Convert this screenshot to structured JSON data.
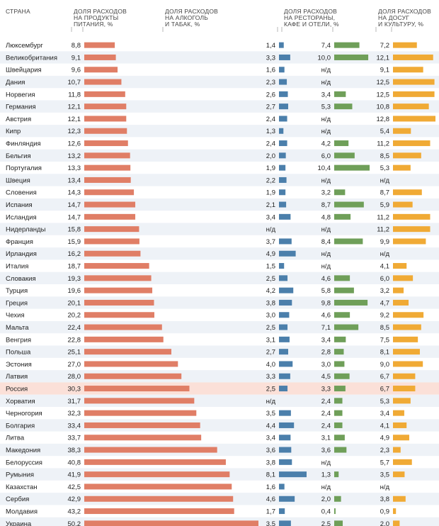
{
  "headers": {
    "country": "СТРАНА",
    "food": [
      "ДОЛЯ РАСХОДОВ",
      "НА ПРОДУКТЫ",
      "ПИТАНИЯ, %"
    ],
    "alcohol": [
      "ДОЛЯ РАСХОДОВ",
      "НА АЛКОГОЛЬ",
      "И ТАБАК, %"
    ],
    "restaurants": [
      "ДОЛЯ РАСХОДОВ",
      "НА РЕСТОРАНЫ,",
      "КАФЕ И ОТЕЛИ, %"
    ],
    "culture": [
      "ДОЛЯ РАСХОДОВ",
      "НА ДОСУГ",
      "И КУЛЬТУРУ, %"
    ]
  },
  "colors": {
    "food": "#e07e66",
    "alcohol": "#4b7fab",
    "restaurants": "#6f9f59",
    "culture": "#f0aa35",
    "stripe": "#eef2f7",
    "highlight": "#fbe0d8"
  },
  "chart_data": {
    "type": "bar",
    "title": "",
    "highlight": "Россия",
    "missing_label": "н/д",
    "categories": [
      "Люксембург",
      "Великобритания",
      "Швейцария",
      "Дания",
      "Норвегия",
      "Германия",
      "Австрия",
      "Кипр",
      "Финляндия",
      "Бельгия",
      "Португалия",
      "Швеция",
      "Словения",
      "Испания",
      "Исландия",
      "Нидерланды",
      "Франция",
      "Ирландия",
      "Италия",
      "Словакия",
      "Турция",
      "Греция",
      "Чехия",
      "Мальта",
      "Венгрия",
      "Польша",
      "Эстония",
      "Латвия",
      "Россия",
      "Хорватия",
      "Черногория",
      "Болгария",
      "Литва",
      "Македония",
      "Белоруссия",
      "Румыния",
      "Казахстан",
      "Сербия",
      "Молдавия",
      "Украина"
    ],
    "series": [
      {
        "name": "Доля расходов на продукты питания, %",
        "key": "food",
        "max": 50.2,
        "values": [
          8.8,
          9.1,
          9.6,
          10.7,
          11.8,
          12.1,
          12.1,
          12.3,
          12.6,
          13.2,
          13.3,
          13.4,
          14.3,
          14.7,
          14.7,
          15.8,
          15.9,
          16.2,
          18.7,
          19.3,
          19.6,
          20.1,
          20.2,
          22.4,
          22.8,
          25.1,
          27.0,
          28.0,
          30.3,
          31.7,
          32.3,
          33.4,
          33.7,
          38.3,
          40.8,
          41.9,
          42.5,
          42.9,
          43.2,
          50.2
        ]
      },
      {
        "name": "Доля расходов на алкоголь и табак, %",
        "key": "alcohol",
        "max": 8.1,
        "values": [
          1.4,
          3.3,
          1.6,
          2.3,
          2.6,
          2.7,
          2.4,
          1.3,
          2.4,
          2.0,
          1.9,
          2.2,
          1.9,
          2.1,
          3.4,
          null,
          3.7,
          4.9,
          1.5,
          2.5,
          4.2,
          3.8,
          3.0,
          2.5,
          3.1,
          2.7,
          4.0,
          3.3,
          2.5,
          null,
          3.5,
          4.4,
          3.4,
          3.6,
          3.8,
          8.1,
          1.6,
          4.6,
          1.7,
          3.5
        ]
      },
      {
        "name": "Доля расходов на рестораны, кафе и отели, %",
        "key": "restaurants",
        "max": 10.4,
        "values": [
          7.4,
          10.0,
          null,
          null,
          3.4,
          5.3,
          null,
          null,
          4.2,
          6.0,
          10.4,
          null,
          3.2,
          8.7,
          4.8,
          null,
          8.4,
          null,
          null,
          4.6,
          5.8,
          9.8,
          4.6,
          7.1,
          3.4,
          2.8,
          3.0,
          4.5,
          3.3,
          2.4,
          2.4,
          2.4,
          3.1,
          3.6,
          null,
          1.3,
          null,
          2.0,
          0.4,
          2.5
        ]
      },
      {
        "name": "Доля расходов на досуг и культуру, %",
        "key": "culture",
        "max": 12.8,
        "values": [
          7.2,
          12.1,
          9.1,
          12.5,
          12.5,
          10.8,
          12.8,
          5.4,
          11.2,
          8.5,
          5.3,
          null,
          8.7,
          5.9,
          11.2,
          11.2,
          9.9,
          null,
          4.1,
          6.0,
          3.2,
          4.7,
          9.2,
          8.5,
          7.5,
          8.1,
          9.0,
          6.7,
          6.7,
          5.3,
          3.4,
          4.1,
          4.9,
          2.3,
          5.7,
          3.5,
          null,
          3.8,
          0.9,
          2.0
        ]
      }
    ]
  }
}
